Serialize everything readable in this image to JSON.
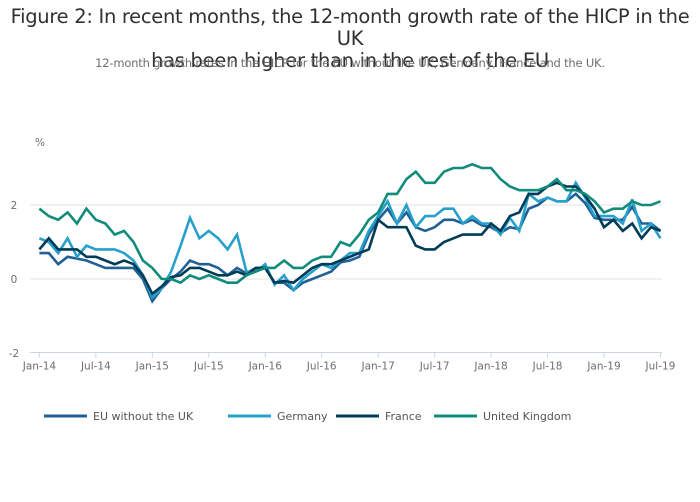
{
  "title_line1": "Figure 2: In recent months, the 12-month growth rate of the HICP in the UK",
  "title_line2": "has been higher than in the rest of the EU",
  "subtitle": "12-month growth rates in the HICP for the EU without the UK, Germany, France and the UK.",
  "chart_data": {
    "type": "line",
    "title": "Figure 2: In recent months, the 12-month growth rate of the HICP in the UK has been higher than in the rest of the EU",
    "subtitle": "12-month growth rates in the HICP for the EU without the UK, Germany, France and the UK.",
    "ylabel": "%",
    "xlabel": "",
    "ylim": [
      -2,
      3.2
    ],
    "yticks": [
      -2,
      0,
      2
    ],
    "ytick_labels": [
      "-2",
      "0",
      "2"
    ],
    "grid": true,
    "legend_position": "bottom",
    "x_start": "Jan-14",
    "x_end": "Jul-19",
    "xticks": [
      "Jan-14",
      "Jul-14",
      "Jan-15",
      "Jul-15",
      "Jan-16",
      "Jul-16",
      "Jan-17",
      "Jul-17",
      "Jan-18",
      "Jul-18",
      "Jan-19",
      "Jul-19"
    ],
    "series": [
      {
        "name": "EU without the UK",
        "color": "#206095",
        "values": [
          0.7,
          0.7,
          0.4,
          0.6,
          0.55,
          0.5,
          0.4,
          0.3,
          0.3,
          0.3,
          0.3,
          0.0,
          -0.6,
          -0.25,
          0.0,
          0.2,
          0.5,
          0.4,
          0.4,
          0.3,
          0.1,
          0.3,
          0.15,
          0.3,
          0.3,
          -0.1,
          -0.1,
          -0.3,
          -0.1,
          0.0,
          0.1,
          0.2,
          0.45,
          0.5,
          0.6,
          1.2,
          1.6,
          1.9,
          1.5,
          1.8,
          1.4,
          1.3,
          1.4,
          1.6,
          1.6,
          1.5,
          1.6,
          1.45,
          1.4,
          1.25,
          1.4,
          1.35,
          1.9,
          2.0,
          2.2,
          2.1,
          2.1,
          2.3,
          2.05,
          1.65,
          1.6,
          1.6,
          1.6,
          1.95,
          1.5,
          1.5,
          1.3
        ]
      },
      {
        "name": "Germany",
        "color": "#27a0cc",
        "values": [
          1.1,
          1.0,
          0.7,
          1.1,
          0.6,
          0.9,
          0.8,
          0.8,
          0.8,
          0.7,
          0.5,
          0.1,
          -0.5,
          -0.25,
          0.2,
          0.9,
          1.65,
          1.1,
          1.3,
          1.1,
          0.8,
          1.2,
          0.2,
          0.2,
          0.4,
          -0.15,
          0.1,
          -0.3,
          0.0,
          0.2,
          0.4,
          0.3,
          0.5,
          0.7,
          0.7,
          1.3,
          1.7,
          2.1,
          1.5,
          2.0,
          1.4,
          1.7,
          1.7,
          1.9,
          1.9,
          1.5,
          1.7,
          1.5,
          1.5,
          1.2,
          1.65,
          1.3,
          2.3,
          2.1,
          2.2,
          2.1,
          2.1,
          2.6,
          2.2,
          1.7,
          1.7,
          1.7,
          1.5,
          2.15,
          1.3,
          1.5,
          1.1
        ]
      },
      {
        "name": "France",
        "color": "#003c57",
        "values": [
          0.8,
          1.1,
          0.8,
          0.8,
          0.8,
          0.6,
          0.6,
          0.5,
          0.4,
          0.5,
          0.4,
          0.1,
          -0.4,
          -0.2,
          0.05,
          0.1,
          0.3,
          0.3,
          0.2,
          0.1,
          0.1,
          0.2,
          0.1,
          0.3,
          0.3,
          -0.1,
          -0.05,
          -0.1,
          0.1,
          0.3,
          0.4,
          0.4,
          0.5,
          0.6,
          0.7,
          0.8,
          1.6,
          1.4,
          1.4,
          1.4,
          0.9,
          0.8,
          0.8,
          1.0,
          1.1,
          1.2,
          1.2,
          1.2,
          1.5,
          1.3,
          1.7,
          1.8,
          2.3,
          2.3,
          2.5,
          2.6,
          2.5,
          2.5,
          2.25,
          1.9,
          1.4,
          1.6,
          1.3,
          1.5,
          1.1,
          1.4,
          1.3
        ]
      },
      {
        "name": "United Kingdom",
        "color": "#118c7b",
        "values": [
          1.9,
          1.7,
          1.6,
          1.8,
          1.5,
          1.9,
          1.6,
          1.5,
          1.2,
          1.3,
          1.0,
          0.5,
          0.3,
          0.0,
          0.0,
          -0.1,
          0.1,
          0.0,
          0.1,
          0.0,
          -0.1,
          -0.1,
          0.1,
          0.2,
          0.3,
          0.3,
          0.5,
          0.3,
          0.3,
          0.5,
          0.6,
          0.6,
          1.0,
          0.9,
          1.2,
          1.6,
          1.8,
          2.3,
          2.3,
          2.7,
          2.9,
          2.6,
          2.6,
          2.9,
          3.0,
          3.0,
          3.1,
          3.0,
          3.0,
          2.7,
          2.5,
          2.4,
          2.4,
          2.4,
          2.5,
          2.7,
          2.4,
          2.4,
          2.3,
          2.1,
          1.8,
          1.9,
          1.9,
          2.1,
          2.0,
          2.0,
          2.1
        ]
      }
    ]
  }
}
